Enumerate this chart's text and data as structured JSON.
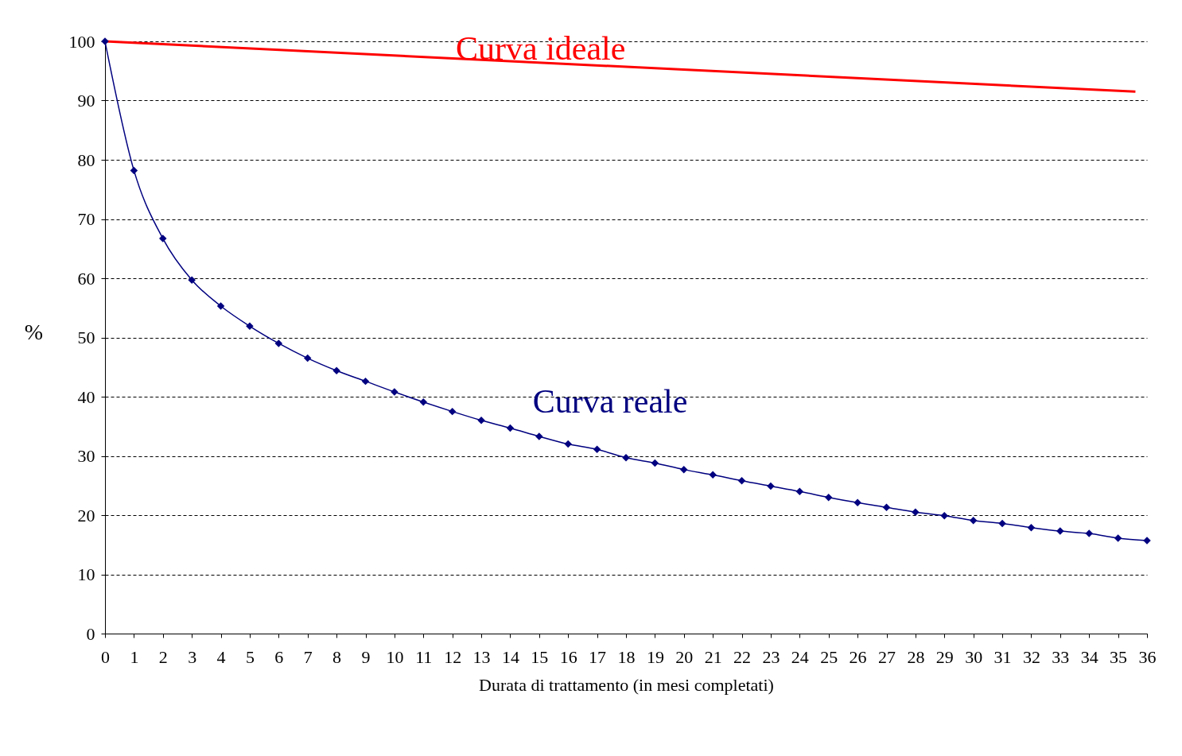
{
  "chart_data": {
    "type": "line",
    "xlabel": "Durata di trattamento (in mesi completati)",
    "ylabel": "%",
    "xlim": [
      0,
      36
    ],
    "xticks": [
      0,
      1,
      2,
      3,
      4,
      5,
      6,
      7,
      8,
      9,
      10,
      11,
      12,
      13,
      14,
      15,
      16,
      17,
      18,
      19,
      20,
      21,
      22,
      23,
      24,
      25,
      26,
      27,
      28,
      29,
      30,
      31,
      32,
      33,
      34,
      35,
      36
    ],
    "ylim": [
      0,
      100
    ],
    "yticks": [
      0,
      10,
      20,
      30,
      40,
      50,
      60,
      70,
      80,
      90,
      100
    ],
    "grid": "y",
    "legend": false,
    "series": [
      {
        "name": "Curva  ideale",
        "color": "#ff0000",
        "marker": "none",
        "x": [
          0,
          35.6
        ],
        "values": [
          100,
          91.5
        ]
      },
      {
        "name": "Curva reale",
        "color": "#000080",
        "marker": "diamond",
        "x": [
          0,
          1,
          2,
          3,
          4,
          5,
          6,
          7,
          8,
          9,
          10,
          11,
          12,
          13,
          14,
          15,
          16,
          17,
          18,
          19,
          20,
          21,
          22,
          23,
          24,
          25,
          26,
          27,
          28,
          29,
          30,
          31,
          32,
          33,
          34,
          35,
          36
        ],
        "values": [
          100,
          78.2,
          66.7,
          59.7,
          55.3,
          51.9,
          49.0,
          46.5,
          44.4,
          42.6,
          40.8,
          39.1,
          37.5,
          36.0,
          34.7,
          33.3,
          32.0,
          31.1,
          29.7,
          28.8,
          27.7,
          26.8,
          25.8,
          24.9,
          24.0,
          23.0,
          22.1,
          21.3,
          20.5,
          19.9,
          19.1,
          18.6,
          17.9,
          17.3,
          16.9,
          16.1,
          15.7
        ]
      }
    ]
  }
}
